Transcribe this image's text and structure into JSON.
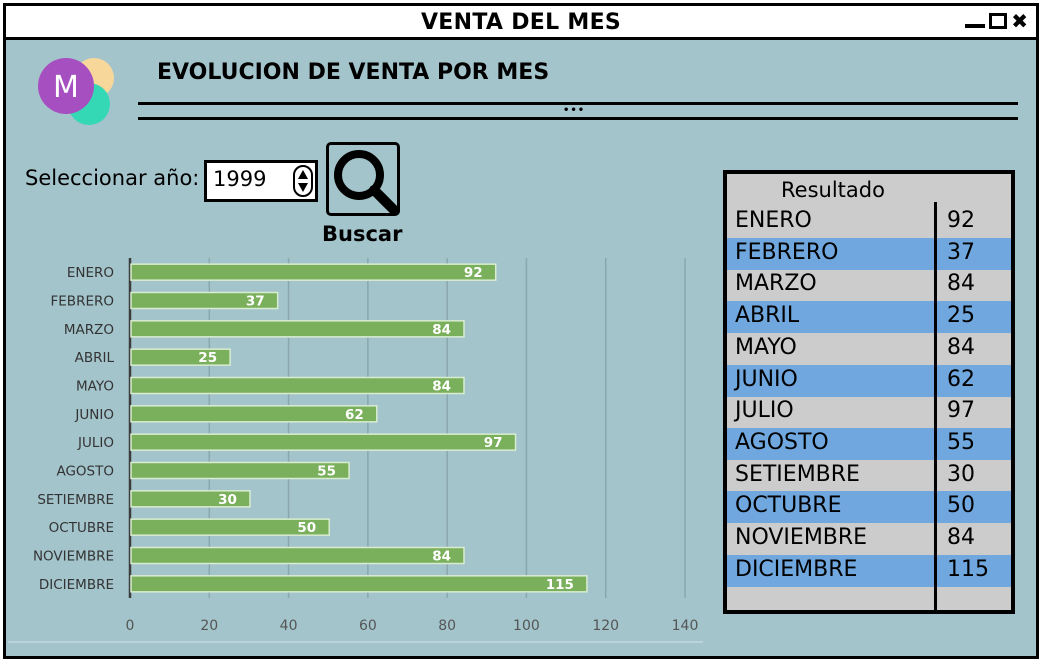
{
  "window": {
    "title": "VENTA DEL MES"
  },
  "header": {
    "title": "EVOLUCION DE VENTA POR MES",
    "dots": "•••"
  },
  "logo": {
    "letter": "M",
    "icon": "logo-icon"
  },
  "controls": {
    "year_label": "Seleccionar año:",
    "year_value": "1999",
    "search_label": "Buscar"
  },
  "colors": {
    "background": "#a3c4cb",
    "bar": "#7aaf5c",
    "row_alt": "#6fa7de",
    "row_base": "#cccccc"
  },
  "chart_data": {
    "type": "bar",
    "orientation": "horizontal",
    "categories": [
      "ENERO",
      "FEBRERO",
      "MARZO",
      "ABRIL",
      "MAYO",
      "JUNIO",
      "JULIO",
      "AGOSTO",
      "SETIEMBRE",
      "OCTUBRE",
      "NOVIEMBRE",
      "DICIEMBRE"
    ],
    "values": [
      92,
      37,
      84,
      25,
      84,
      62,
      97,
      55,
      30,
      50,
      84,
      115
    ],
    "xticks": [
      0,
      20,
      40,
      60,
      80,
      100,
      120,
      140
    ],
    "xlim": [
      0,
      140
    ],
    "grid": true
  },
  "results": {
    "title": "Resultado",
    "rows": [
      {
        "month": "ENERO",
        "value": "92"
      },
      {
        "month": "FEBRERO",
        "value": "37"
      },
      {
        "month": "MARZO",
        "value": "84"
      },
      {
        "month": "ABRIL",
        "value": "25"
      },
      {
        "month": "MAYO",
        "value": "84"
      },
      {
        "month": "JUNIO",
        "value": "62"
      },
      {
        "month": "JULIO",
        "value": "97"
      },
      {
        "month": "AGOSTO",
        "value": "55"
      },
      {
        "month": "SETIEMBRE",
        "value": "30"
      },
      {
        "month": "OCTUBRE",
        "value": "50"
      },
      {
        "month": "NOVIEMBRE",
        "value": "84"
      },
      {
        "month": "DICIEMBRE",
        "value": "115"
      }
    ]
  }
}
